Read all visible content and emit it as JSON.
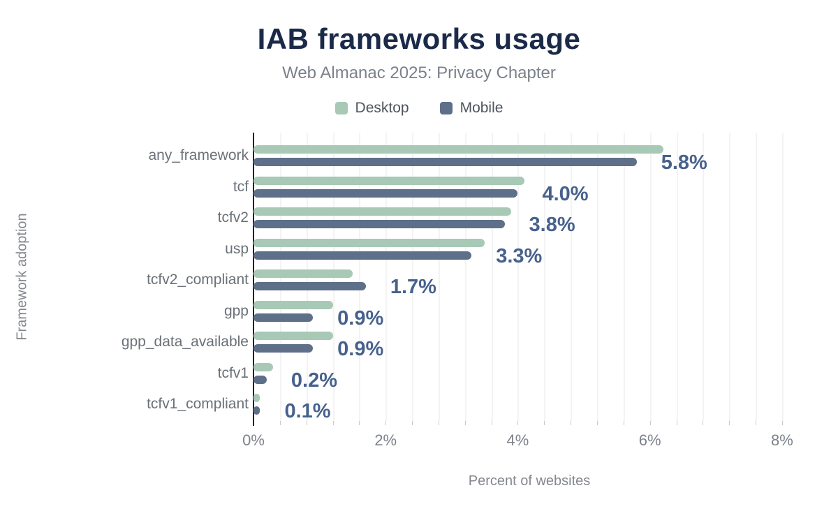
{
  "header": {
    "title": "IAB frameworks usage",
    "subtitle": "Web Almanac 2025: Privacy Chapter"
  },
  "legend": {
    "items": [
      {
        "label": "Desktop",
        "color": "#a7c9b6"
      },
      {
        "label": "Mobile",
        "color": "#5e6f8a"
      }
    ]
  },
  "chart_data": {
    "type": "bar",
    "orientation": "horizontal",
    "title": "IAB frameworks usage",
    "subtitle": "Web Almanac 2025: Privacy Chapter",
    "categories": [
      "any_framework",
      "tcf",
      "tcfv2",
      "usp",
      "tcfv2_compliant",
      "gpp",
      "gpp_data_available",
      "tcfv1",
      "tcfv1_compliant"
    ],
    "series": [
      {
        "name": "Desktop",
        "color": "#a7c9b6",
        "values": [
          6.2,
          4.1,
          3.9,
          3.5,
          1.5,
          1.2,
          1.2,
          0.3,
          0.1
        ]
      },
      {
        "name": "Mobile",
        "color": "#5e6f8a",
        "values": [
          5.8,
          4.0,
          3.8,
          3.3,
          1.7,
          0.9,
          0.9,
          0.2,
          0.1
        ]
      }
    ],
    "bar_labels": [
      "5.8%",
      "4.0%",
      "3.8%",
      "3.3%",
      "1.7%",
      "0.9%",
      "0.9%",
      "0.2%",
      "0.1%"
    ],
    "bar_label_color": "#47618d",
    "xlabel": "Percent of websites",
    "ylabel": "Framework adoption",
    "x_ticks": [
      {
        "value": 0,
        "label": "0%"
      },
      {
        "value": 2,
        "label": "2%"
      },
      {
        "value": 4,
        "label": "4%"
      },
      {
        "value": 6,
        "label": "6%"
      },
      {
        "value": 8,
        "label": "8%"
      }
    ],
    "xlim": [
      0,
      8.35
    ],
    "grid": true,
    "grid_step": 0.4,
    "legend_position": "top"
  }
}
